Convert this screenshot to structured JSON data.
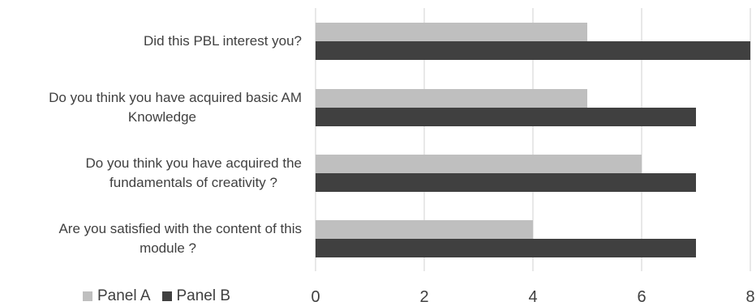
{
  "chart_data": {
    "type": "bar",
    "orientation": "horizontal",
    "categories": [
      "Did this PBL interest you?",
      "Do you think you have acquired basic AM Knowledge",
      "Do you think you have acquired the fundamentals of creativity ?",
      "Are you satisfied with the content of this module ?"
    ],
    "category_lines": [
      [
        "Did this PBL interest you?"
      ],
      [
        "Do you think you have acquired basic AM",
        "Knowledge"
      ],
      [
        "Do you think you have acquired the",
        "fundamentals of creativity ?"
      ],
      [
        "Are you satisfied with the content of this",
        "module ?"
      ]
    ],
    "series": [
      {
        "name": "Panel A",
        "color": "#bfbfbf",
        "values": [
          5,
          5,
          6,
          4
        ]
      },
      {
        "name": "Panel B",
        "color": "#404040",
        "values": [
          8,
          7,
          7,
          7
        ]
      }
    ],
    "xlim": [
      0,
      8
    ],
    "xticks": [
      "0",
      "2",
      "4",
      "6",
      "8"
    ],
    "grid": true,
    "legend_position": "bottom-left",
    "title": "",
    "xlabel": "",
    "ylabel": ""
  }
}
